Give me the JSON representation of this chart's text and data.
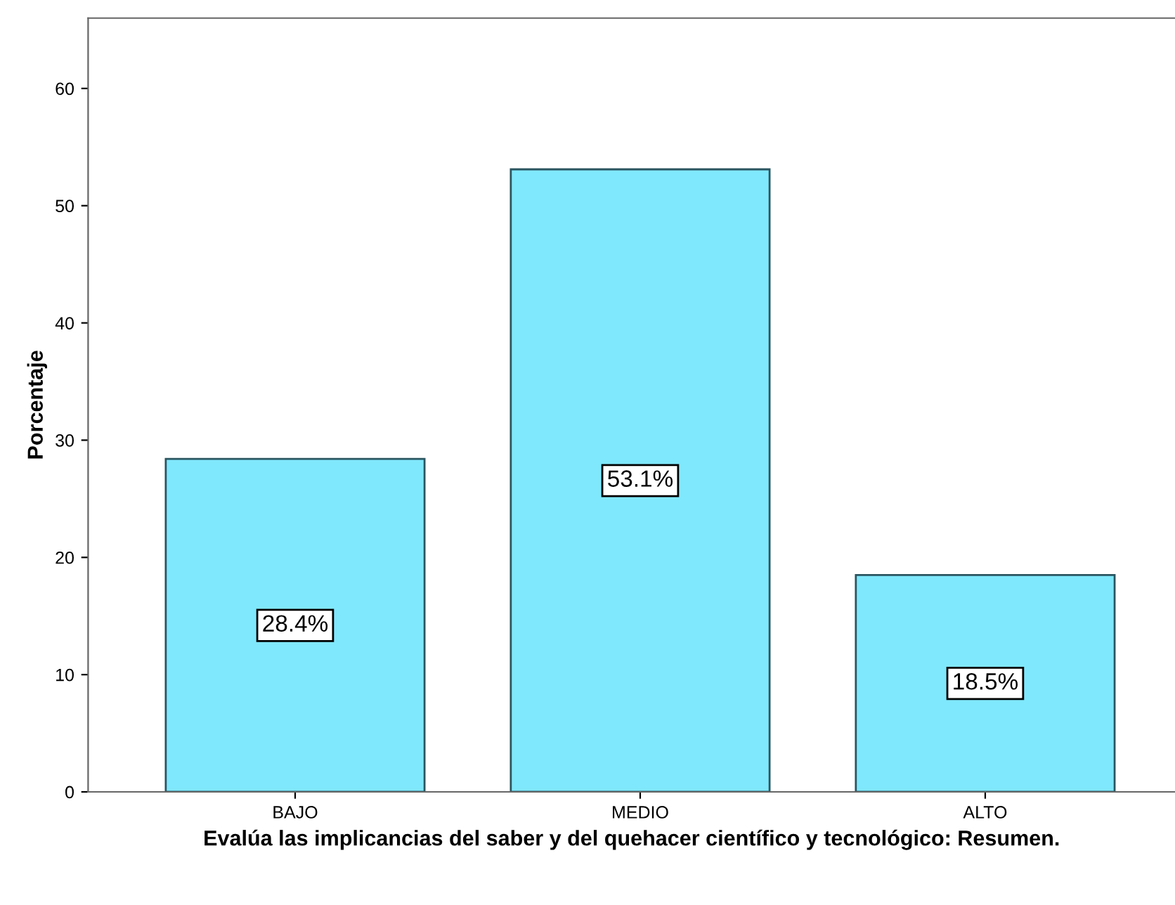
{
  "chart_data": {
    "type": "bar",
    "xlabel": "Evalúa las implicancias del saber y del quehacer científico y tecnológico: Resumen.",
    "ylabel": "Porcentaje",
    "categories": [
      "BAJO",
      "MEDIO",
      "ALTO"
    ],
    "values": [
      28.4,
      53.1,
      18.5
    ],
    "value_labels": [
      "28.4%",
      "53.1%",
      "18.5%"
    ],
    "color": "#80e8fc",
    "ylim": [
      0,
      66
    ],
    "yticks": [
      0,
      10,
      20,
      30,
      40,
      50,
      60
    ],
    "grid": false,
    "legend": false
  }
}
